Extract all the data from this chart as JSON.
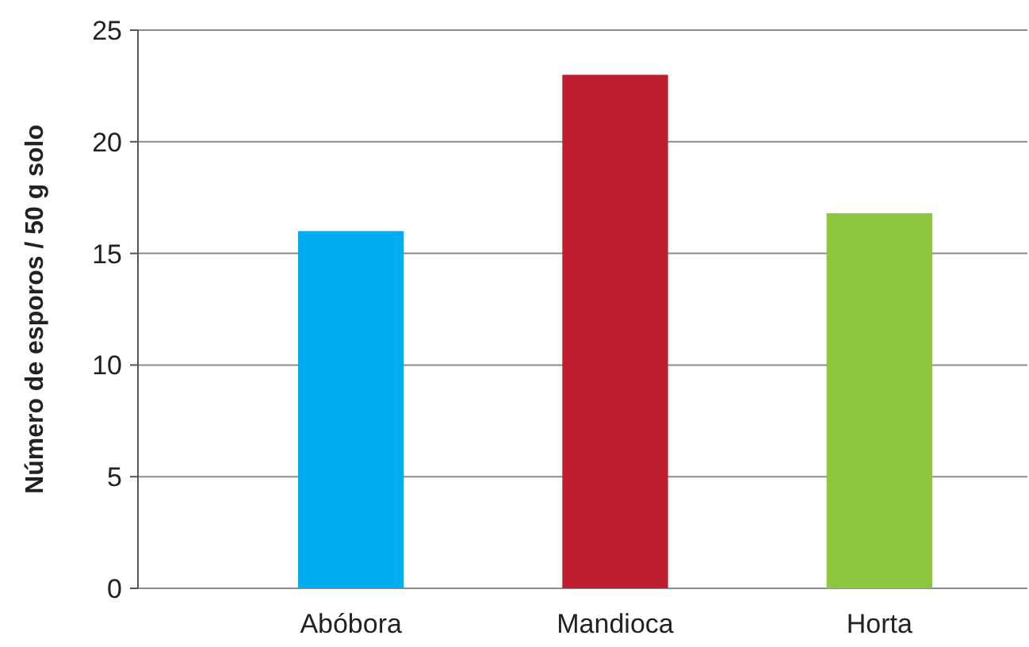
{
  "chart_data": {
    "type": "bar",
    "ylabel": "Número de esporos / 50 g solo",
    "categories": [
      "Abóbora",
      "Mandioca",
      "Horta"
    ],
    "values": [
      16,
      23,
      16.8
    ],
    "colors": [
      "#00adef",
      "#be1e2d",
      "#8dc63f"
    ],
    "ylim": [
      0,
      25
    ],
    "yticks": [
      0,
      5,
      10,
      15,
      20,
      25
    ],
    "grid": "y"
  }
}
